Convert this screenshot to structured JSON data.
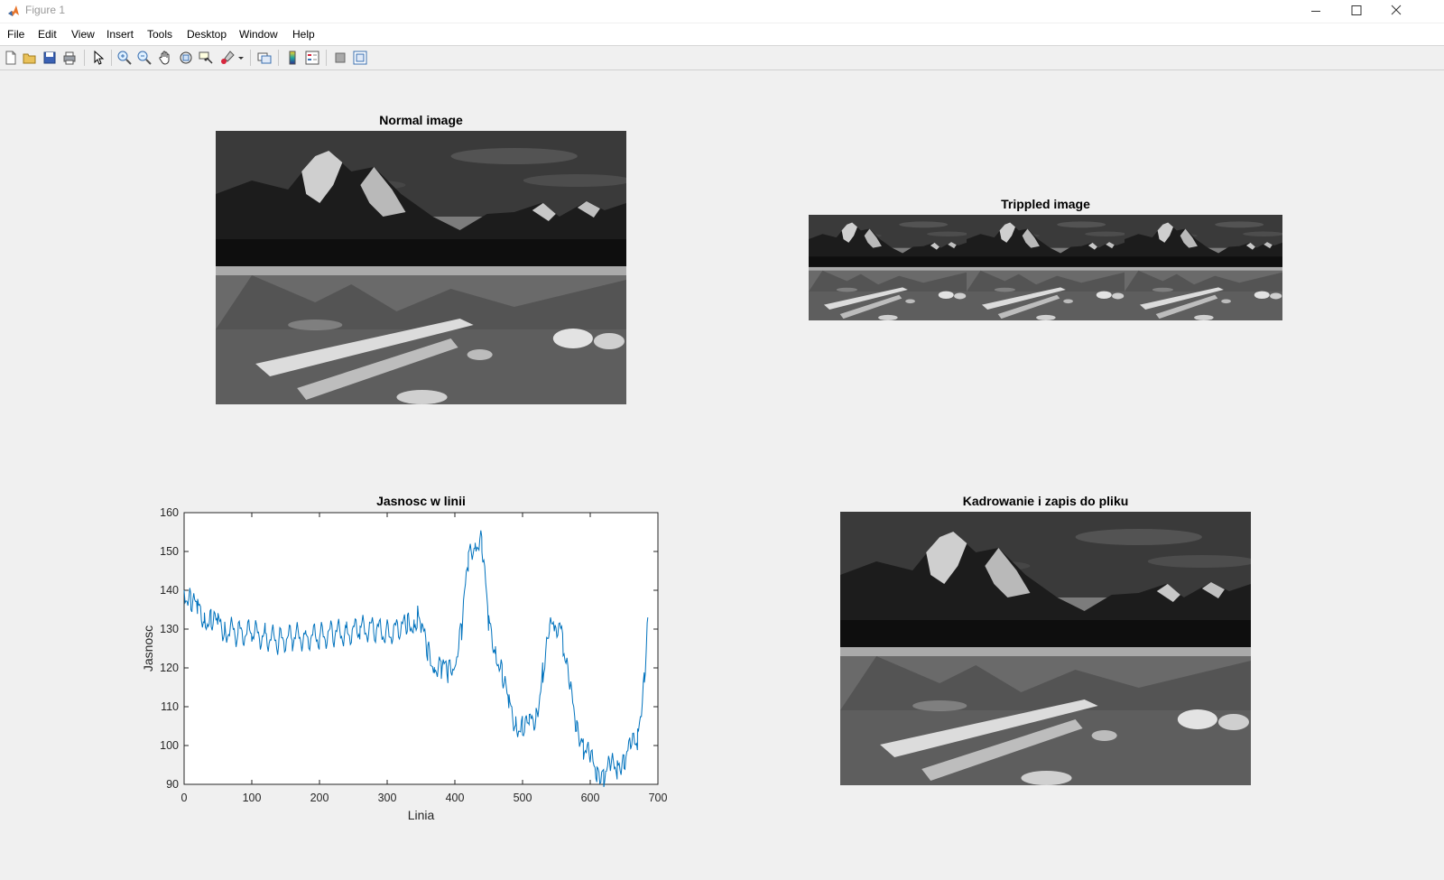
{
  "window": {
    "title": "Figure 1"
  },
  "menu": [
    "File",
    "Edit",
    "View",
    "Insert",
    "Tools",
    "Desktop",
    "Window",
    "Help"
  ],
  "toolbar_icons": [
    "new-figure-icon",
    "open-file-icon",
    "save-icon",
    "print-icon",
    "edit-plot-icon",
    "zoom-in-icon",
    "zoom-out-icon",
    "pan-icon",
    "rotate-3d-icon",
    "data-cursor-icon",
    "brush-icon",
    "link-plot-icon",
    "insert-colorbar-icon",
    "insert-legend-icon",
    "hide-plot-tools-icon",
    "show-plot-tools-icon"
  ],
  "axes": {
    "normal": {
      "title": "Normal image"
    },
    "tripled": {
      "title": "Trippled image"
    },
    "cropped": {
      "title": "Kadrowanie i zapis do pliku"
    }
  },
  "chart_data": {
    "type": "line",
    "title": "Jasnosc w linii",
    "xlabel": "Linia",
    "ylabel": "Jasnosc",
    "xlim": [
      0,
      700
    ],
    "ylim": [
      90,
      160
    ],
    "xticks": [
      0,
      100,
      200,
      300,
      400,
      500,
      600,
      700
    ],
    "yticks": [
      90,
      100,
      110,
      120,
      130,
      140,
      150,
      160
    ],
    "grid": false,
    "series": [
      {
        "color": "#0072bd",
        "x": [
          0,
          10,
          20,
          30,
          40,
          50,
          60,
          80,
          100,
          120,
          140,
          160,
          180,
          200,
          220,
          240,
          260,
          280,
          300,
          320,
          330,
          340,
          345,
          350,
          360,
          370,
          380,
          390,
          400,
          410,
          420,
          430,
          440,
          450,
          460,
          470,
          480,
          490,
          500,
          510,
          520,
          530,
          540,
          548,
          555,
          560,
          570,
          580,
          590,
          600,
          610,
          620,
          630,
          640,
          650,
          660,
          670,
          680,
          685
        ],
        "y": [
          140,
          137,
          135,
          133,
          132,
          131,
          130,
          129,
          129,
          128,
          127,
          128,
          128,
          128,
          129,
          129,
          130,
          130,
          129,
          130,
          131,
          132,
          133,
          131,
          124,
          121,
          120,
          119,
          122,
          130,
          148,
          153,
          152,
          131,
          125,
          118,
          110,
          106,
          104,
          105,
          108,
          118,
          129,
          132,
          130,
          126,
          114,
          106,
          100,
          96,
          94,
          93,
          94,
          95,
          97,
          99,
          102,
          118,
          133
        ]
      }
    ]
  }
}
